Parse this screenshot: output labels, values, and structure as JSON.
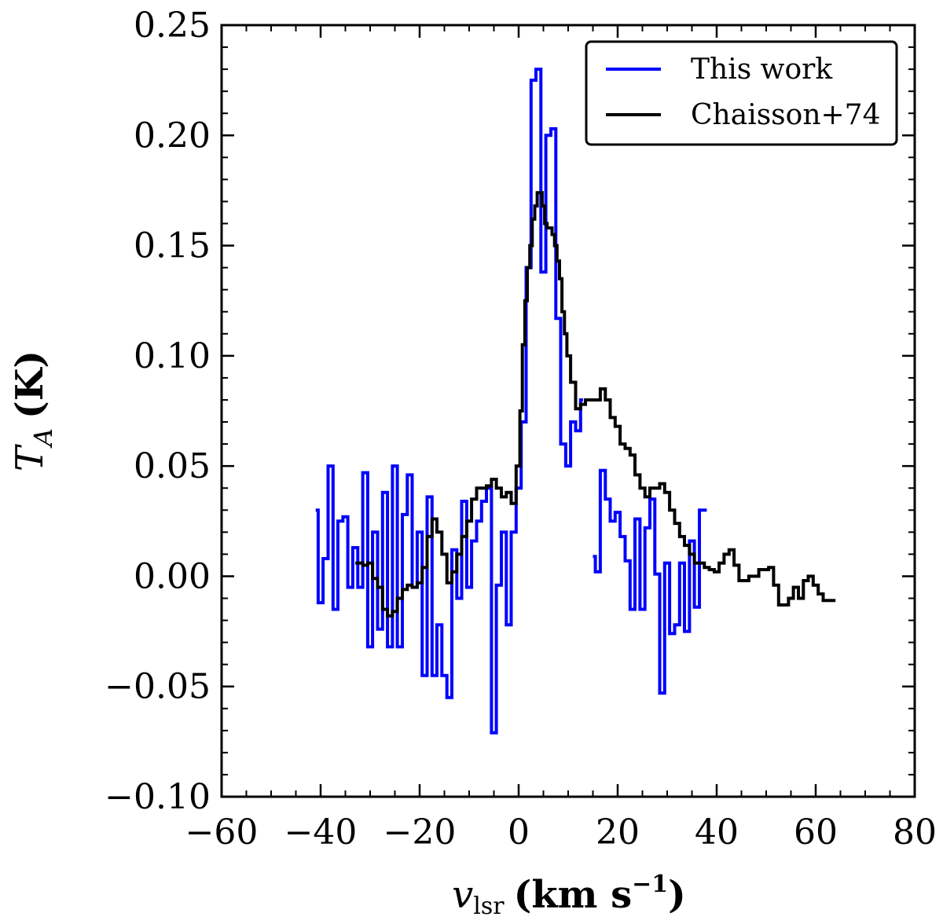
{
  "chart_data": {
    "type": "line",
    "title": "",
    "xlabel": {
      "symbol": "v",
      "subscript": "lsr",
      "unit": "(km s",
      "exp": "−1",
      "close": ")"
    },
    "ylabel": {
      "symbol": "T",
      "subscript": "A",
      "unit": "(K)"
    },
    "xlim": [
      -60,
      80
    ],
    "ylim": [
      -0.1,
      0.25
    ],
    "xticks": [
      -60,
      -40,
      -20,
      0,
      20,
      40,
      60,
      80
    ],
    "xtick_labels": [
      "−60",
      "−40",
      "−20",
      "0",
      "20",
      "40",
      "60",
      "80"
    ],
    "yticks": [
      -0.1,
      -0.05,
      0.0,
      0.05,
      0.1,
      0.15,
      0.2,
      0.25
    ],
    "ytick_labels": [
      "−0.10",
      "−0.05",
      "0.00",
      "0.05",
      "0.10",
      "0.15",
      "0.20",
      "0.25"
    ],
    "legend_position": "top-right",
    "series": [
      {
        "name": "This work",
        "color": "#0000ff",
        "style": "steps",
        "segments": [
          {
            "x": [
              -41,
              -40,
              -39,
              -38,
              -37,
              -36,
              -35,
              -34,
              -33,
              -32,
              -31,
              -30,
              -29,
              -28,
              -27,
              -26,
              -25,
              -24,
              -23,
              -22,
              -21,
              -20,
              -19,
              -18,
              -17,
              -16,
              -15,
              -14,
              -13,
              -12,
              -11,
              -10,
              -9,
              -8,
              -7,
              -6,
              -5,
              -4,
              -3,
              -2,
              -1,
              0
            ],
            "y": [
              0.03,
              -0.012,
              0.008,
              0.05,
              -0.015,
              0.025,
              0.027,
              -0.005,
              0.013,
              -0.005,
              0.047,
              -0.032,
              0.02,
              -0.024,
              0.038,
              -0.032,
              0.05,
              -0.032,
              0.028,
              0.046,
              -0.005,
              0.02,
              -0.045,
              0.036,
              -0.045,
              -0.022,
              -0.045,
              -0.055,
              0.012,
              -0.01,
              0.034,
              -0.005,
              0.016,
              0.025,
              0.034,
              0.04,
              -0.071,
              -0.004,
              0.02,
              -0.022,
              0.02,
              0.04
            ]
          },
          {
            "x": [
              0,
              1,
              2,
              3,
              4,
              5,
              6,
              7,
              8,
              9,
              10,
              11,
              12,
              13
            ],
            "y": [
              0.04,
              0.07,
              0.14,
              0.225,
              0.23,
              0.138,
              0.2,
              0.203,
              0.117,
              0.06,
              0.05,
              0.07,
              0.066,
              0.08
            ]
          },
          {
            "x": [
              15,
              16,
              17,
              18,
              19,
              20,
              21,
              22,
              23,
              24,
              25,
              26,
              27,
              28,
              29,
              30,
              31,
              32,
              33,
              34,
              35,
              36,
              37,
              38
            ],
            "y": [
              0.009,
              0.002,
              0.048,
              0.035,
              0.025,
              0.029,
              0.018,
              0.007,
              -0.015,
              0.026,
              -0.015,
              0.022,
              0.035,
              0.001,
              -0.053,
              0.006,
              -0.026,
              -0.022,
              0.006,
              -0.025,
              0.016,
              -0.014,
              0.03,
              0.03
            ]
          }
        ]
      },
      {
        "name": "Chaisson+74",
        "color": "#000000",
        "style": "steps",
        "segments": [
          {
            "x": [
              -33,
              -32,
              -31,
              -30,
              -29,
              -28,
              -27,
              -26,
              -25,
              -24,
              -23,
              -22,
              -21,
              -20,
              -19,
              -18,
              -17,
              -16,
              -15,
              -14,
              -13,
              -12,
              -11,
              -10,
              -9,
              -8,
              -7,
              -6,
              -5,
              -4,
              -3,
              -2,
              -1,
              0,
              0.5,
              1,
              1.5,
              2,
              2.5,
              3,
              3.5,
              4,
              4.5,
              5,
              5.5,
              6,
              6.5,
              7,
              7.5,
              8,
              8.5,
              9,
              9.5,
              10,
              11,
              12,
              13,
              14,
              15,
              16,
              17,
              18,
              19,
              20,
              21,
              22,
              23,
              24,
              25,
              26,
              27,
              28,
              29,
              30,
              31,
              32,
              33,
              34,
              35,
              36,
              37,
              38,
              39,
              40,
              41,
              42,
              43,
              44,
              45,
              46,
              47,
              48,
              49,
              50,
              51,
              52,
              53,
              54,
              55,
              56,
              57,
              58,
              59,
              60,
              61,
              62,
              63,
              64
            ],
            "y": [
              0.006,
              0.006,
              0.005,
              0.006,
              -0.001,
              -0.005,
              -0.015,
              -0.018,
              -0.016,
              -0.01,
              -0.006,
              -0.004,
              -0.005,
              -0.003,
              0.004,
              0.018,
              0.026,
              0.02,
              0.01,
              -0.003,
              0.002,
              0.01,
              0.018,
              0.025,
              0.035,
              0.04,
              0.04,
              0.041,
              0.044,
              0.04,
              0.036,
              0.038,
              0.033,
              0.05,
              0.075,
              0.105,
              0.125,
              0.14,
              0.15,
              0.162,
              0.168,
              0.174,
              0.174,
              0.168,
              0.16,
              0.158,
              0.158,
              0.155,
              0.15,
              0.143,
              0.135,
              0.12,
              0.11,
              0.1,
              0.088,
              0.076,
              0.078,
              0.08,
              0.08,
              0.08,
              0.085,
              0.08,
              0.072,
              0.068,
              0.06,
              0.058,
              0.055,
              0.046,
              0.04,
              0.036,
              0.04,
              0.04,
              0.042,
              0.038,
              0.03,
              0.024,
              0.018,
              0.014,
              0.01,
              0.006,
              0.006,
              0.004,
              0.003,
              0.002,
              0.006,
              0.01,
              0.012,
              0.005,
              -0.002,
              -0.002,
              0.0,
              0.0,
              0.003,
              0.003,
              0.004,
              -0.004,
              -0.013,
              -0.013,
              -0.01,
              -0.005,
              -0.01,
              -0.002,
              0.0,
              -0.004,
              -0.008,
              -0.011,
              -0.011,
              -0.011
            ]
          }
        ]
      }
    ]
  }
}
